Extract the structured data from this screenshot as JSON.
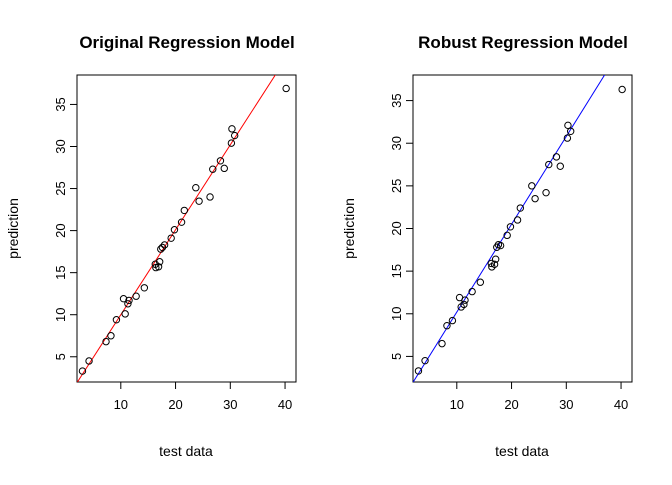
{
  "chart_data": [
    {
      "type": "scatter",
      "title": "Original Regression Model",
      "xlabel": "test data",
      "ylabel": "prediction",
      "xlim": [
        2,
        42
      ],
      "ylim": [
        2,
        38.5
      ],
      "x_ticks": [
        10,
        20,
        30,
        40
      ],
      "y_ticks": [
        5,
        10,
        15,
        20,
        25,
        30,
        35
      ],
      "grid": false,
      "points": [
        {
          "x": 3.0,
          "y": 3.3
        },
        {
          "x": 4.2,
          "y": 4.5
        },
        {
          "x": 7.3,
          "y": 6.8
        },
        {
          "x": 8.2,
          "y": 7.5
        },
        {
          "x": 9.2,
          "y": 9.4
        },
        {
          "x": 10.5,
          "y": 11.9
        },
        {
          "x": 10.8,
          "y": 10.1
        },
        {
          "x": 11.3,
          "y": 11.3
        },
        {
          "x": 11.5,
          "y": 11.7
        },
        {
          "x": 12.8,
          "y": 12.2
        },
        {
          "x": 14.3,
          "y": 13.2
        },
        {
          "x": 16.3,
          "y": 16.0
        },
        {
          "x": 16.4,
          "y": 15.6
        },
        {
          "x": 16.9,
          "y": 15.7
        },
        {
          "x": 17.1,
          "y": 16.3
        },
        {
          "x": 17.3,
          "y": 17.8
        },
        {
          "x": 17.6,
          "y": 18.0
        },
        {
          "x": 18.0,
          "y": 18.3
        },
        {
          "x": 19.2,
          "y": 19.1
        },
        {
          "x": 19.8,
          "y": 20.1
        },
        {
          "x": 21.1,
          "y": 21.0
        },
        {
          "x": 21.6,
          "y": 22.4
        },
        {
          "x": 23.7,
          "y": 25.1
        },
        {
          "x": 24.3,
          "y": 23.5
        },
        {
          "x": 26.3,
          "y": 24.0
        },
        {
          "x": 26.8,
          "y": 27.3
        },
        {
          "x": 28.2,
          "y": 28.3
        },
        {
          "x": 28.9,
          "y": 27.4
        },
        {
          "x": 30.2,
          "y": 30.4
        },
        {
          "x": 30.3,
          "y": 32.1
        },
        {
          "x": 30.8,
          "y": 31.3
        },
        {
          "x": 40.2,
          "y": 36.9
        }
      ],
      "fit_line": {
        "intercept": -0.1,
        "slope": 1.01,
        "color": "#ff0000"
      }
    },
    {
      "type": "scatter",
      "title": "Robust Regression Model",
      "xlabel": "test data",
      "ylabel": "prediction",
      "xlim": [
        2,
        42
      ],
      "ylim": [
        2,
        38
      ],
      "x_ticks": [
        10,
        20,
        30,
        40
      ],
      "y_ticks": [
        5,
        10,
        15,
        20,
        25,
        30,
        35
      ],
      "grid": false,
      "points": [
        {
          "x": 3.0,
          "y": 3.3
        },
        {
          "x": 4.2,
          "y": 4.5
        },
        {
          "x": 7.3,
          "y": 6.5
        },
        {
          "x": 8.2,
          "y": 8.6
        },
        {
          "x": 9.2,
          "y": 9.2
        },
        {
          "x": 10.5,
          "y": 11.9
        },
        {
          "x": 10.8,
          "y": 10.8
        },
        {
          "x": 11.3,
          "y": 11.1
        },
        {
          "x": 11.5,
          "y": 11.6
        },
        {
          "x": 12.8,
          "y": 12.6
        },
        {
          "x": 14.3,
          "y": 13.7
        },
        {
          "x": 16.3,
          "y": 15.9
        },
        {
          "x": 16.4,
          "y": 15.5
        },
        {
          "x": 16.9,
          "y": 15.8
        },
        {
          "x": 17.1,
          "y": 16.4
        },
        {
          "x": 17.3,
          "y": 17.8
        },
        {
          "x": 17.6,
          "y": 18.1
        },
        {
          "x": 18.0,
          "y": 18.0
        },
        {
          "x": 19.2,
          "y": 19.2
        },
        {
          "x": 19.8,
          "y": 20.2
        },
        {
          "x": 21.1,
          "y": 21.0
        },
        {
          "x": 21.6,
          "y": 22.4
        },
        {
          "x": 23.7,
          "y": 25.0
        },
        {
          "x": 24.3,
          "y": 23.5
        },
        {
          "x": 26.3,
          "y": 24.2
        },
        {
          "x": 26.8,
          "y": 27.5
        },
        {
          "x": 28.2,
          "y": 28.4
        },
        {
          "x": 28.9,
          "y": 27.3
        },
        {
          "x": 30.2,
          "y": 30.6
        },
        {
          "x": 30.3,
          "y": 32.1
        },
        {
          "x": 30.8,
          "y": 31.4
        },
        {
          "x": 40.2,
          "y": 36.3
        }
      ],
      "fit_line": {
        "intercept": -0.1,
        "slope": 1.03,
        "color": "#0000ff"
      }
    }
  ]
}
